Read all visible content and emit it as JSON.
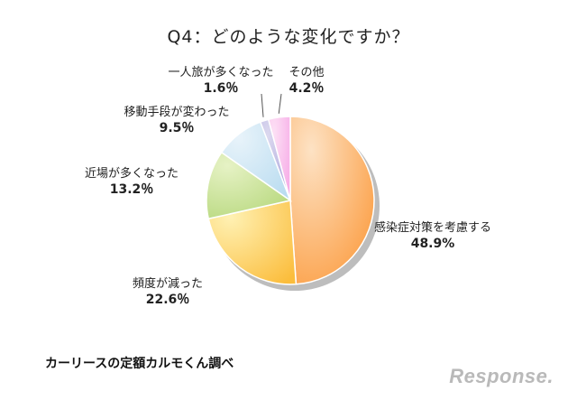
{
  "chart_data": {
    "type": "pie",
    "title": "Q4：どのような変化ですか？",
    "slices": [
      {
        "label": "感染症対策を考慮する",
        "value": 48.9,
        "value_label": "48.9%",
        "color_light": "#fde2c4",
        "color_dark": "#fb9a3c"
      },
      {
        "label": "頻度が減った",
        "value": 22.6,
        "value_label": "22.6％",
        "color_light": "#fff1b3",
        "color_dark": "#fbbd3c"
      },
      {
        "label": "近場が多くなった",
        "value": 13.2,
        "value_label": "13.2％",
        "color_light": "#e6f2c5",
        "color_dark": "#b5d77a"
      },
      {
        "label": "移動手段が変わった",
        "value": 9.5,
        "value_label": "9.5％",
        "color_light": "#e8f3fa",
        "color_dark": "#b9dcf0"
      },
      {
        "label": "一人旅が多くなった",
        "value": 1.6,
        "value_label": "1.6％",
        "color_light": "#dcd9ef",
        "color_dark": "#a9a3dc"
      },
      {
        "label": "その他",
        "value": 4.2,
        "value_label": "4.2％",
        "color_light": "#fde0f5",
        "color_dark": "#f6a9e6"
      }
    ],
    "start_angle_deg": 0,
    "direction": "clockwise"
  },
  "source": "カーリースの定額カルモくん調べ",
  "watermark": "Response."
}
